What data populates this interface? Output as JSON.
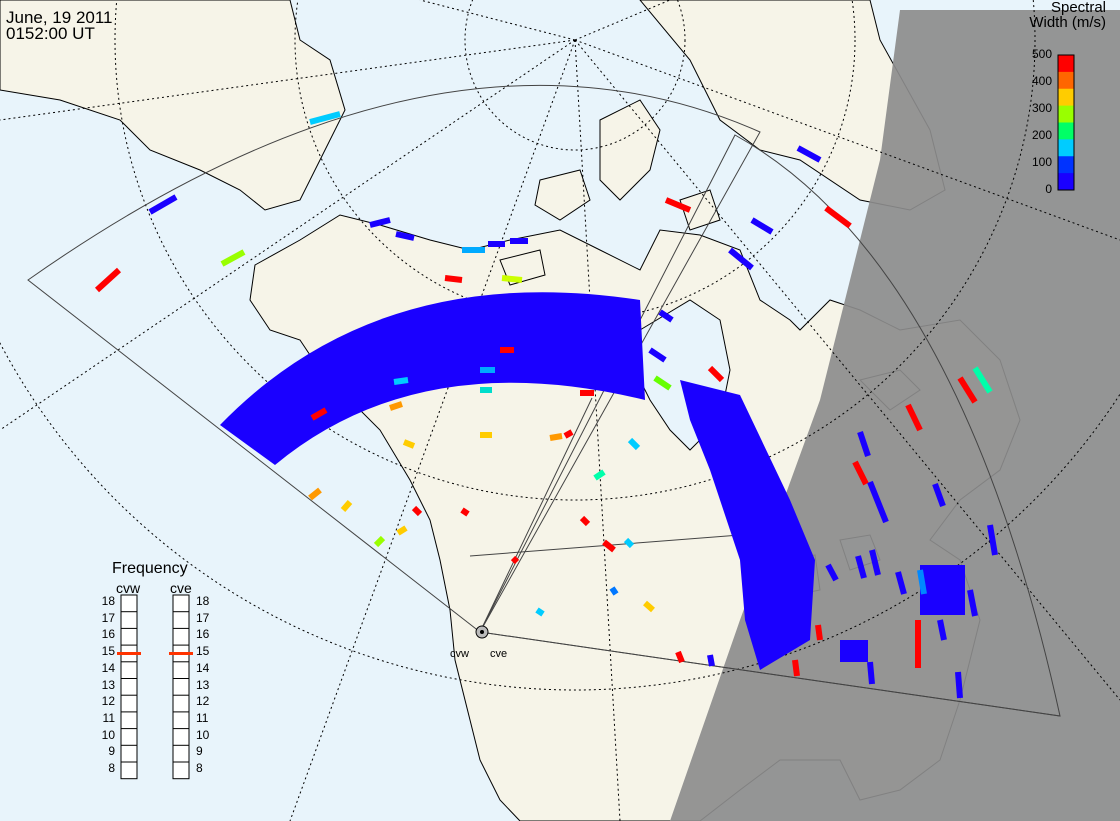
{
  "header": {
    "date": "June, 19 2011",
    "time": "0152:00 UT"
  },
  "colorbar": {
    "title_line1": "Spectral",
    "title_line2": "Width (m/s)",
    "ticks": [
      "500",
      "400",
      "300",
      "200",
      "100",
      "0"
    ],
    "colors": [
      "#ff0000",
      "#ff6600",
      "#ffcc00",
      "#99ff00",
      "#00ff66",
      "#00ccff",
      "#0033ff",
      "#1a00ff"
    ]
  },
  "frequency_panel": {
    "title": "Frequency",
    "radars": [
      {
        "name": "cvw",
        "selected": "15"
      },
      {
        "name": "cve",
        "selected": "15"
      }
    ],
    "ticks": [
      "18",
      "17",
      "16",
      "15",
      "14",
      "13",
      "12",
      "11",
      "10",
      "9",
      "8"
    ]
  },
  "sites": {
    "cvw": "cvw",
    "cve": "cve"
  },
  "map_colors": {
    "ocean": "#e8f4fb",
    "land": "#f6f4e8",
    "night": "#8c8c8c",
    "scatter_main": "#1a00ff"
  }
}
